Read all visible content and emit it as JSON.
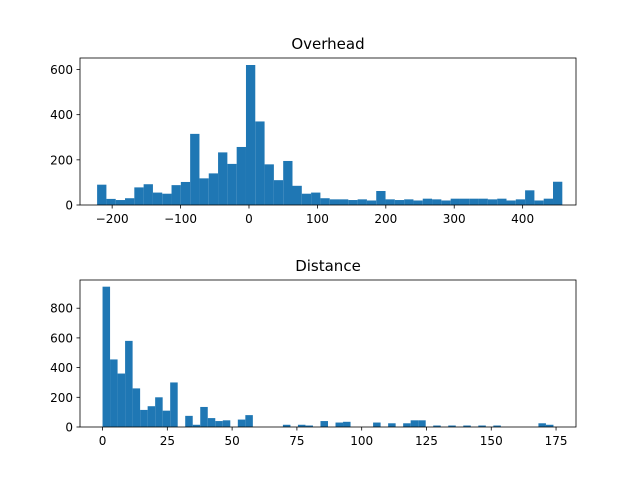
{
  "chart_data": [
    {
      "type": "bar",
      "title": "Overhead",
      "color": "#1f77b4",
      "bins": {
        "start": -222,
        "width": 13.6,
        "counts": [
          90,
          27,
          22,
          30,
          78,
          92,
          55,
          50,
          88,
          102,
          315,
          118,
          140,
          233,
          182,
          257,
          620,
          370,
          180,
          110,
          195,
          85,
          50,
          55,
          30,
          25,
          25,
          22,
          25,
          20,
          62,
          25,
          22,
          25,
          20,
          28,
          25,
          20,
          28,
          28,
          28,
          28,
          25,
          28,
          20,
          25,
          65,
          20,
          28,
          103
        ]
      },
      "xlim": [
        -247,
        478
      ],
      "ylim": [
        0,
        651
      ],
      "xticks": [
        -200,
        -100,
        0,
        100,
        200,
        300,
        400
      ],
      "xtick_labels": [
        "−200",
        "−100",
        "0",
        "100",
        "200",
        "300",
        "400"
      ],
      "yticks": [
        0,
        200,
        400,
        600
      ],
      "ytick_labels": [
        "0",
        "200",
        "400",
        "600"
      ]
    },
    {
      "type": "bar",
      "title": "Distance",
      "color": "#1f77b4",
      "bins": {
        "start": 0,
        "width": 2.9,
        "counts": [
          945,
          455,
          360,
          580,
          260,
          115,
          140,
          200,
          110,
          300,
          0,
          75,
          15,
          135,
          60,
          40,
          45,
          0,
          50,
          80,
          0,
          0,
          0,
          0,
          15,
          0,
          15,
          10,
          0,
          40,
          0,
          30,
          35,
          0,
          0,
          0,
          30,
          0,
          25,
          0,
          25,
          45,
          45,
          0,
          10,
          0,
          10,
          0,
          10,
          0,
          10,
          0,
          10,
          0,
          0,
          0,
          0,
          0,
          25,
          15
        ]
      },
      "xlim": [
        -8.7,
        182.7
      ],
      "ylim": [
        0,
        990
      ],
      "xticks": [
        0,
        25,
        50,
        75,
        100,
        125,
        150,
        175
      ],
      "xtick_labels": [
        "0",
        "25",
        "50",
        "75",
        "100",
        "125",
        "150",
        "175"
      ],
      "yticks": [
        0,
        200,
        400,
        600,
        800
      ],
      "ytick_labels": [
        "0",
        "200",
        "400",
        "600",
        "800"
      ]
    }
  ]
}
